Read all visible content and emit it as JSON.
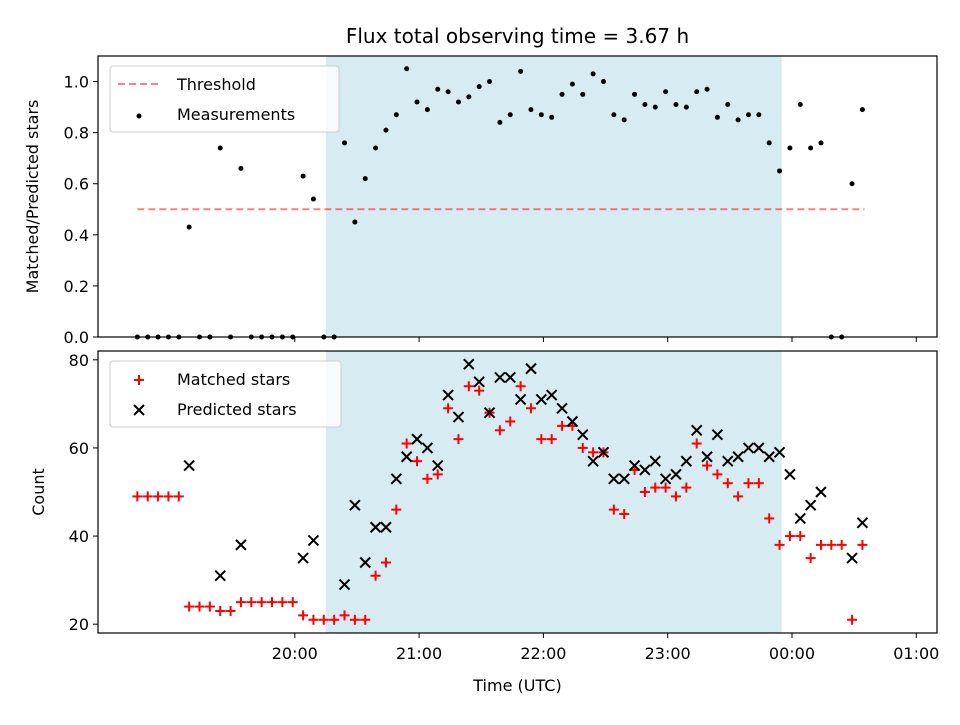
{
  "colors": {
    "band": "#add8e6",
    "threshold": "#ff0000",
    "measurement": "#000000",
    "matched": "#ff0000",
    "predicted": "#000000"
  },
  "chart_data": [
    {
      "type": "scatter",
      "title": "Flux total observing time = 3.67 h",
      "xlabel": "",
      "ylabel": "Matched/Predicted stars",
      "xlim": [
        -35,
        370
      ],
      "ylim": [
        0,
        1.1
      ],
      "yticks": [
        0.0,
        0.2,
        0.4,
        0.6,
        0.8,
        1.0
      ],
      "y_tick_labels": [
        "0.0",
        "0.2",
        "0.4",
        "0.6",
        "0.8",
        "1.0"
      ],
      "x_note": "x values are minutes after 19:00 UTC",
      "shaded_region": [
        75,
        295
      ],
      "threshold": {
        "label": "Threshold",
        "y": 0.5,
        "x_range": [
          -16,
          335
        ]
      },
      "legend": {
        "position": "top-left",
        "entries": [
          "Threshold",
          "Measurements"
        ]
      },
      "measurements": [
        {
          "x": -16,
          "y": 0.0
        },
        {
          "x": -11,
          "y": 0.0
        },
        {
          "x": -6,
          "y": 0.0
        },
        {
          "x": -1,
          "y": 0.0
        },
        {
          "x": 4,
          "y": 0.0
        },
        {
          "x": 9,
          "y": 0.43
        },
        {
          "x": 14,
          "y": 0.0
        },
        {
          "x": 19,
          "y": 0.0
        },
        {
          "x": 24,
          "y": 0.74
        },
        {
          "x": 29,
          "y": 0.0
        },
        {
          "x": 34,
          "y": 0.66
        },
        {
          "x": 39,
          "y": 0.0
        },
        {
          "x": 44,
          "y": 0.0
        },
        {
          "x": 49,
          "y": 0.0
        },
        {
          "x": 54,
          "y": 0.0
        },
        {
          "x": 59,
          "y": 0.0
        },
        {
          "x": 64,
          "y": 0.63
        },
        {
          "x": 69,
          "y": 0.54
        },
        {
          "x": 74,
          "y": 0.0
        },
        {
          "x": 79,
          "y": 0.0
        },
        {
          "x": 84,
          "y": 0.76
        },
        {
          "x": 89,
          "y": 0.45
        },
        {
          "x": 94,
          "y": 0.62
        },
        {
          "x": 99,
          "y": 0.74
        },
        {
          "x": 104,
          "y": 0.81
        },
        {
          "x": 109,
          "y": 0.87
        },
        {
          "x": 114,
          "y": 1.05
        },
        {
          "x": 119,
          "y": 0.92
        },
        {
          "x": 124,
          "y": 0.89
        },
        {
          "x": 129,
          "y": 0.97
        },
        {
          "x": 134,
          "y": 0.96
        },
        {
          "x": 139,
          "y": 0.92
        },
        {
          "x": 144,
          "y": 0.94
        },
        {
          "x": 149,
          "y": 0.98
        },
        {
          "x": 154,
          "y": 1.0
        },
        {
          "x": 159,
          "y": 0.84
        },
        {
          "x": 164,
          "y": 0.87
        },
        {
          "x": 169,
          "y": 1.04
        },
        {
          "x": 174,
          "y": 0.89
        },
        {
          "x": 179,
          "y": 0.87
        },
        {
          "x": 184,
          "y": 0.86
        },
        {
          "x": 189,
          "y": 0.95
        },
        {
          "x": 194,
          "y": 0.99
        },
        {
          "x": 199,
          "y": 0.95
        },
        {
          "x": 204,
          "y": 1.03
        },
        {
          "x": 209,
          "y": 1.0
        },
        {
          "x": 214,
          "y": 0.87
        },
        {
          "x": 219,
          "y": 0.85
        },
        {
          "x": 224,
          "y": 0.95
        },
        {
          "x": 229,
          "y": 0.91
        },
        {
          "x": 234,
          "y": 0.9
        },
        {
          "x": 239,
          "y": 0.96
        },
        {
          "x": 244,
          "y": 0.91
        },
        {
          "x": 249,
          "y": 0.9
        },
        {
          "x": 254,
          "y": 0.96
        },
        {
          "x": 259,
          "y": 0.97
        },
        {
          "x": 264,
          "y": 0.86
        },
        {
          "x": 269,
          "y": 0.91
        },
        {
          "x": 274,
          "y": 0.85
        },
        {
          "x": 279,
          "y": 0.87
        },
        {
          "x": 284,
          "y": 0.87
        },
        {
          "x": 289,
          "y": 0.76
        },
        {
          "x": 294,
          "y": 0.65
        },
        {
          "x": 299,
          "y": 0.74
        },
        {
          "x": 304,
          "y": 0.91
        },
        {
          "x": 309,
          "y": 0.74
        },
        {
          "x": 314,
          "y": 0.76
        },
        {
          "x": 319,
          "y": 0.0
        },
        {
          "x": 324,
          "y": 0.0
        },
        {
          "x": 329,
          "y": 0.6
        },
        {
          "x": 334,
          "y": 0.89
        }
      ]
    },
    {
      "type": "scatter",
      "title": "",
      "xlabel": "Time (UTC)",
      "ylabel": "Count",
      "xlim": [
        -35,
        370
      ],
      "ylim": [
        18,
        82
      ],
      "yticks": [
        20,
        40,
        60,
        80
      ],
      "y_tick_labels": [
        "20",
        "40",
        "60",
        "80"
      ],
      "xticks": [
        60,
        120,
        180,
        240,
        300,
        360
      ],
      "x_tick_labels": [
        "20:00",
        "21:00",
        "22:00",
        "23:00",
        "00:00",
        "01:00"
      ],
      "x_note": "x values are minutes after 19:00 UTC",
      "shaded_region": [
        75,
        295
      ],
      "legend": {
        "position": "top-left",
        "entries": [
          "Matched stars",
          "Predicted stars"
        ]
      },
      "series": [
        {
          "name": "Matched stars",
          "marker": "plus",
          "points": [
            {
              "x": -16,
              "y": 49
            },
            {
              "x": -11,
              "y": 49
            },
            {
              "x": -6,
              "y": 49
            },
            {
              "x": -1,
              "y": 49
            },
            {
              "x": 4,
              "y": 49
            },
            {
              "x": 9,
              "y": 24
            },
            {
              "x": 14,
              "y": 24
            },
            {
              "x": 19,
              "y": 24
            },
            {
              "x": 24,
              "y": 23
            },
            {
              "x": 29,
              "y": 23
            },
            {
              "x": 34,
              "y": 25
            },
            {
              "x": 39,
              "y": 25
            },
            {
              "x": 44,
              "y": 25
            },
            {
              "x": 49,
              "y": 25
            },
            {
              "x": 54,
              "y": 25
            },
            {
              "x": 59,
              "y": 25
            },
            {
              "x": 64,
              "y": 22
            },
            {
              "x": 69,
              "y": 21
            },
            {
              "x": 74,
              "y": 21
            },
            {
              "x": 79,
              "y": 21
            },
            {
              "x": 84,
              "y": 22
            },
            {
              "x": 89,
              "y": 21
            },
            {
              "x": 94,
              "y": 21
            },
            {
              "x": 99,
              "y": 31
            },
            {
              "x": 104,
              "y": 34
            },
            {
              "x": 109,
              "y": 46
            },
            {
              "x": 114,
              "y": 61
            },
            {
              "x": 119,
              "y": 57
            },
            {
              "x": 124,
              "y": 53
            },
            {
              "x": 129,
              "y": 54
            },
            {
              "x": 134,
              "y": 69
            },
            {
              "x": 139,
              "y": 62
            },
            {
              "x": 144,
              "y": 74
            },
            {
              "x": 149,
              "y": 73
            },
            {
              "x": 154,
              "y": 68
            },
            {
              "x": 159,
              "y": 64
            },
            {
              "x": 164,
              "y": 66
            },
            {
              "x": 169,
              "y": 74
            },
            {
              "x": 174,
              "y": 69
            },
            {
              "x": 179,
              "y": 62
            },
            {
              "x": 184,
              "y": 62
            },
            {
              "x": 189,
              "y": 65
            },
            {
              "x": 194,
              "y": 65
            },
            {
              "x": 199,
              "y": 60
            },
            {
              "x": 204,
              "y": 59
            },
            {
              "x": 209,
              "y": 59
            },
            {
              "x": 214,
              "y": 46
            },
            {
              "x": 219,
              "y": 45
            },
            {
              "x": 224,
              "y": 55
            },
            {
              "x": 229,
              "y": 50
            },
            {
              "x": 234,
              "y": 51
            },
            {
              "x": 239,
              "y": 51
            },
            {
              "x": 244,
              "y": 49
            },
            {
              "x": 249,
              "y": 51
            },
            {
              "x": 254,
              "y": 61
            },
            {
              "x": 259,
              "y": 56
            },
            {
              "x": 264,
              "y": 54
            },
            {
              "x": 269,
              "y": 52
            },
            {
              "x": 274,
              "y": 49
            },
            {
              "x": 279,
              "y": 52
            },
            {
              "x": 284,
              "y": 52
            },
            {
              "x": 289,
              "y": 44
            },
            {
              "x": 294,
              "y": 38
            },
            {
              "x": 299,
              "y": 40
            },
            {
              "x": 304,
              "y": 40
            },
            {
              "x": 309,
              "y": 35
            },
            {
              "x": 314,
              "y": 38
            },
            {
              "x": 319,
              "y": 38
            },
            {
              "x": 324,
              "y": 38
            },
            {
              "x": 329,
              "y": 21
            },
            {
              "x": 334,
              "y": 38
            }
          ]
        },
        {
          "name": "Predicted stars",
          "marker": "x",
          "points": [
            {
              "x": 9,
              "y": 56
            },
            {
              "x": 24,
              "y": 31
            },
            {
              "x": 34,
              "y": 38
            },
            {
              "x": 64,
              "y": 35
            },
            {
              "x": 69,
              "y": 39
            },
            {
              "x": 84,
              "y": 29
            },
            {
              "x": 89,
              "y": 47
            },
            {
              "x": 94,
              "y": 34
            },
            {
              "x": 99,
              "y": 42
            },
            {
              "x": 104,
              "y": 42
            },
            {
              "x": 109,
              "y": 53
            },
            {
              "x": 114,
              "y": 58
            },
            {
              "x": 119,
              "y": 62
            },
            {
              "x": 124,
              "y": 60
            },
            {
              "x": 129,
              "y": 56
            },
            {
              "x": 134,
              "y": 72
            },
            {
              "x": 139,
              "y": 67
            },
            {
              "x": 144,
              "y": 79
            },
            {
              "x": 149,
              "y": 75
            },
            {
              "x": 154,
              "y": 68
            },
            {
              "x": 159,
              "y": 76
            },
            {
              "x": 164,
              "y": 76
            },
            {
              "x": 169,
              "y": 71
            },
            {
              "x": 174,
              "y": 78
            },
            {
              "x": 179,
              "y": 71
            },
            {
              "x": 184,
              "y": 72
            },
            {
              "x": 189,
              "y": 69
            },
            {
              "x": 194,
              "y": 66
            },
            {
              "x": 199,
              "y": 63
            },
            {
              "x": 204,
              "y": 57
            },
            {
              "x": 209,
              "y": 59
            },
            {
              "x": 214,
              "y": 53
            },
            {
              "x": 219,
              "y": 53
            },
            {
              "x": 224,
              "y": 56
            },
            {
              "x": 229,
              "y": 55
            },
            {
              "x": 234,
              "y": 57
            },
            {
              "x": 239,
              "y": 53
            },
            {
              "x": 244,
              "y": 54
            },
            {
              "x": 249,
              "y": 57
            },
            {
              "x": 254,
              "y": 64
            },
            {
              "x": 259,
              "y": 58
            },
            {
              "x": 264,
              "y": 63
            },
            {
              "x": 269,
              "y": 57
            },
            {
              "x": 274,
              "y": 58
            },
            {
              "x": 279,
              "y": 60
            },
            {
              "x": 284,
              "y": 60
            },
            {
              "x": 289,
              "y": 58
            },
            {
              "x": 294,
              "y": 59
            },
            {
              "x": 299,
              "y": 54
            },
            {
              "x": 304,
              "y": 44
            },
            {
              "x": 309,
              "y": 47
            },
            {
              "x": 314,
              "y": 50
            },
            {
              "x": 329,
              "y": 35
            },
            {
              "x": 334,
              "y": 43
            }
          ]
        }
      ]
    }
  ]
}
